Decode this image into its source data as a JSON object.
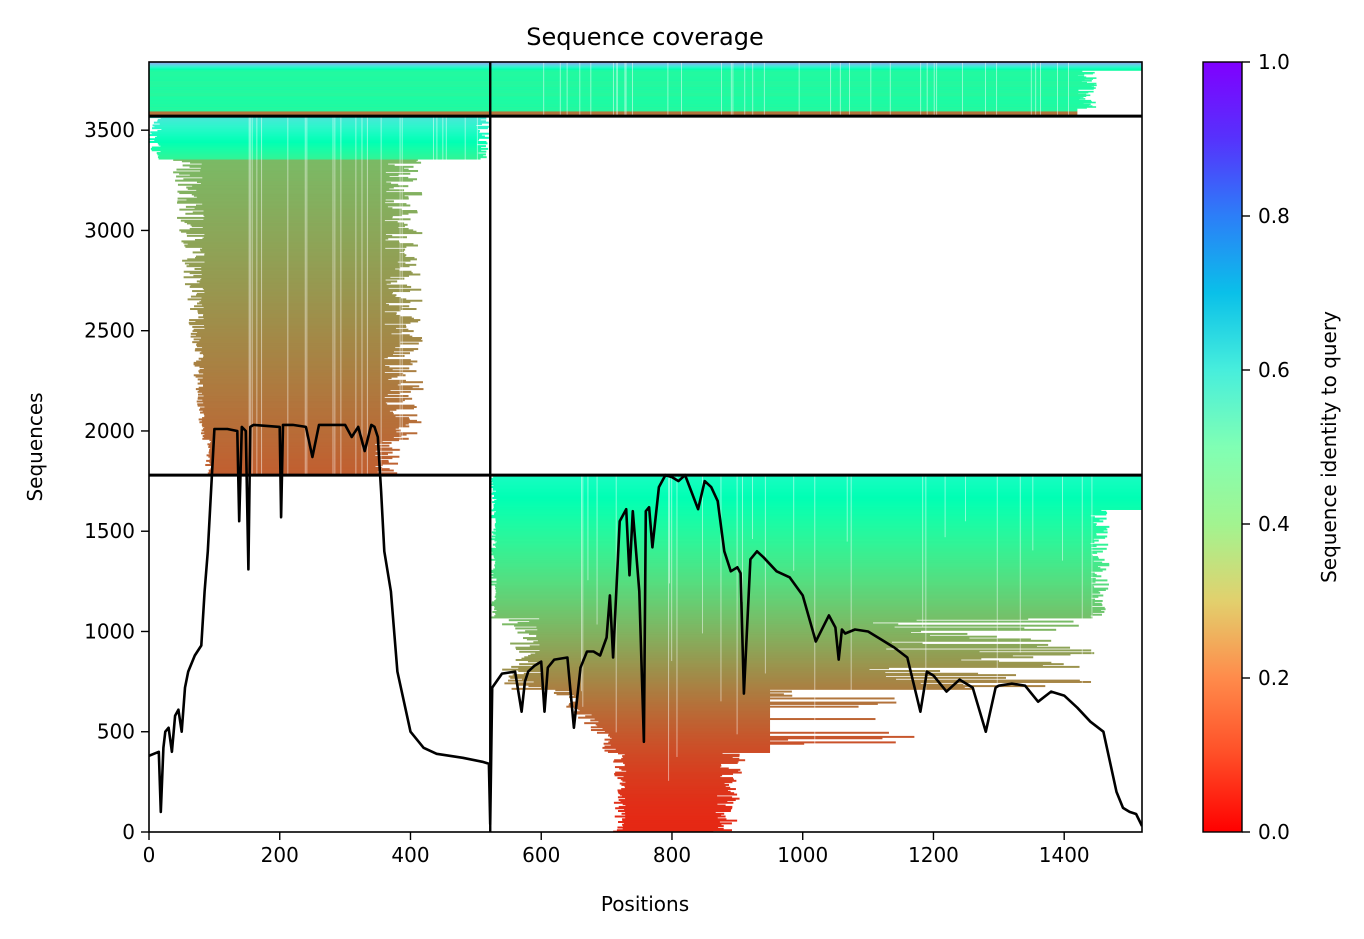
{
  "chart_data": {
    "type": "heatmap",
    "title": "Sequence coverage",
    "xlabel": "Positions",
    "ylabel": "Sequences",
    "colorbar_label": "Sequence identity to query",
    "colormap": "rainbow_r",
    "xlim": [
      0,
      1519
    ],
    "ylim": [
      0,
      3840
    ],
    "x_ticks": [
      "0",
      "200",
      "400",
      "600",
      "800",
      "1000",
      "1200",
      "1400"
    ],
    "y_ticks": [
      "0",
      "500",
      "1000",
      "1500",
      "2000",
      "2500",
      "3000",
      "3500"
    ],
    "colorbar_ticks": [
      "0.0",
      "0.2",
      "0.4",
      "0.6",
      "0.8",
      "1.0"
    ],
    "colorbar_range": [
      0,
      1
    ],
    "domain_boundary_x": 522,
    "group_boundaries_y": [
      1780,
      3570
    ],
    "groups": [
      {
        "rows": [
          0,
          1780
        ],
        "coverage_x": [
          522,
          1519
        ],
        "identity_range": [
          0.05,
          0.55
        ]
      },
      {
        "rows": [
          1780,
          3570
        ],
        "coverage_x": [
          0,
          522
        ],
        "identity_range": [
          0.12,
          0.65
        ]
      },
      {
        "rows": [
          3570,
          3840
        ],
        "coverage_x": [
          0,
          1519
        ],
        "identity_range": [
          0.15,
          0.8
        ]
      }
    ],
    "coverage_line": {
      "x": [
        0,
        15,
        18,
        22,
        25,
        30,
        35,
        40,
        45,
        50,
        55,
        60,
        70,
        80,
        85,
        90,
        100,
        120,
        135,
        138,
        142,
        148,
        152,
        155,
        160,
        200,
        202,
        205,
        220,
        240,
        250,
        260,
        270,
        280,
        300,
        310,
        320,
        330,
        340,
        345,
        350,
        355,
        360,
        370,
        380,
        400,
        420,
        440,
        480,
        510,
        520,
        522,
        525,
        540,
        560,
        570,
        575,
        580,
        590,
        600,
        605,
        610,
        620,
        640,
        650,
        660,
        670,
        680,
        690,
        700,
        705,
        710,
        720,
        730,
        735,
        740,
        750,
        757,
        760,
        765,
        770,
        780,
        790,
        800,
        810,
        820,
        840,
        850,
        860,
        870,
        880,
        890,
        900,
        905,
        910,
        920,
        925,
        930,
        940,
        960,
        980,
        1000,
        1020,
        1040,
        1050,
        1055,
        1060,
        1065,
        1080,
        1100,
        1120,
        1140,
        1160,
        1180,
        1185,
        1190,
        1200,
        1220,
        1240,
        1260,
        1280,
        1295,
        1300,
        1320,
        1340,
        1360,
        1380,
        1400,
        1420,
        1440,
        1460,
        1480,
        1490,
        1500,
        1510,
        1519
      ],
      "y": [
        380,
        400,
        100,
        420,
        500,
        520,
        400,
        580,
        610,
        500,
        720,
        800,
        880,
        930,
        1200,
        1400,
        2010,
        2010,
        2000,
        1550,
        2020,
        2000,
        1310,
        2020,
        2030,
        2020,
        1570,
        2030,
        2030,
        2020,
        1870,
        2030,
        2030,
        2030,
        2030,
        1970,
        2020,
        1900,
        2030,
        2020,
        1970,
        1700,
        1400,
        1200,
        800,
        500,
        420,
        390,
        370,
        350,
        340,
        40,
        720,
        790,
        800,
        600,
        750,
        800,
        830,
        850,
        600,
        820,
        860,
        870,
        520,
        820,
        900,
        900,
        880,
        970,
        1180,
        870,
        1550,
        1610,
        1280,
        1600,
        1200,
        450,
        1600,
        1620,
        1420,
        1720,
        1780,
        1770,
        1750,
        1780,
        1610,
        1750,
        1720,
        1650,
        1400,
        1300,
        1320,
        1290,
        690,
        1360,
        1380,
        1400,
        1370,
        1300,
        1270,
        1180,
        950,
        1080,
        1020,
        860,
        1010,
        990,
        1010,
        1000,
        960,
        920,
        870,
        600,
        700,
        800,
        780,
        700,
        760,
        720,
        500,
        720,
        730,
        740,
        730,
        650,
        700,
        680,
        620,
        550,
        500,
        200,
        120,
        100,
        90,
        30
      ]
    }
  }
}
